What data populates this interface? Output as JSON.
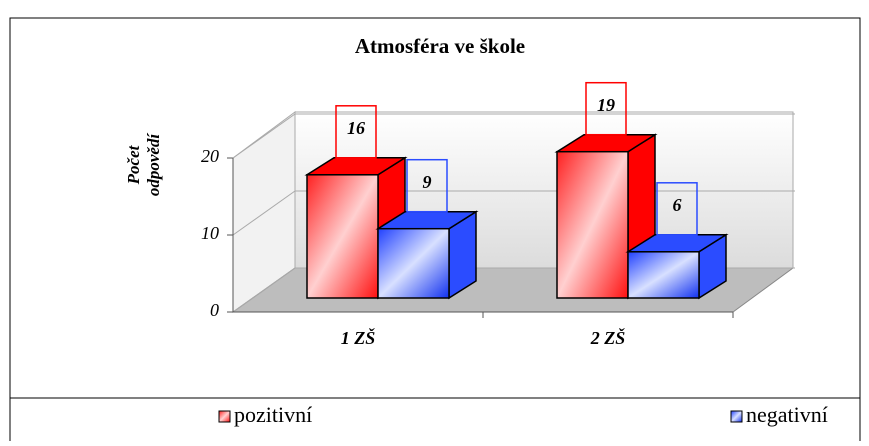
{
  "chart_data": {
    "type": "bar3d",
    "title": "Atmosféra ve škole",
    "y_label": "Počet odpovědí",
    "categories": [
      "1 ZŠ",
      "2 ZŠ"
    ],
    "series": [
      {
        "name": "pozitivní",
        "color": "#ff0000",
        "values": [
          16,
          19
        ]
      },
      {
        "name": "negativní",
        "color": "#2b4cff",
        "values": [
          9,
          6
        ]
      }
    ],
    "ylim": [
      0,
      20
    ],
    "yticks": [
      0,
      10,
      20
    ],
    "grid": true,
    "legend": "bottom"
  }
}
